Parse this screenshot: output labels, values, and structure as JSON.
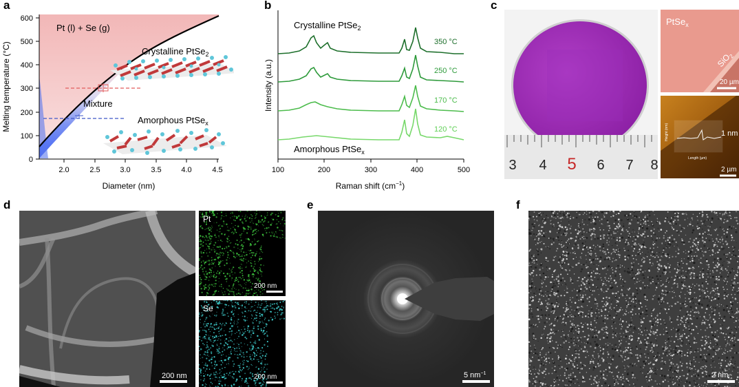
{
  "panels": {
    "a": {
      "label": "a",
      "region_top": "Pt (l) + Se (g)",
      "crystalline": "Crystalline PtSe",
      "crystalline_sub": "2",
      "mixture": "Mixture",
      "amorphous": "Amorphous PtSe",
      "amorphous_sub": "x",
      "ylabel": "Melting temperature (°C)",
      "xlabel": "Diameter (nm)",
      "xticks": [
        "2.0",
        "2.5",
        "3.0",
        "3.5",
        "4.0",
        "4.5"
      ],
      "yticks": [
        "0",
        "100",
        "200",
        "300",
        "400",
        "500",
        "600"
      ]
    },
    "b": {
      "label": "b",
      "ylabel": "Intensity (a.u.)",
      "xlabel": "Raman shift (cm",
      "xlabel_sup": "−1",
      "xlabel_end": ")",
      "xticks": [
        "100",
        "200",
        "300",
        "400",
        "500"
      ],
      "top_label": "Crystalline PtSe",
      "top_label_sub": "2",
      "bottom_label": "Amorphous PtSe",
      "bottom_label_sub": "x",
      "curves": [
        "350 °C",
        "250 °C",
        "170 °C",
        "120 °C"
      ]
    },
    "c": {
      "label": "c",
      "ruler_numbers": [
        "3",
        "4",
        "5",
        "6",
        "7",
        "8"
      ],
      "inset_title": "PtSe",
      "inset_title_sub": "x",
      "sio2": "SiO",
      "sio2_sub": "2",
      "scale_top": "20 µm",
      "afm_height": "1 nm",
      "afm_scale": "2 µm",
      "afm_ylabel": "Height (nm)",
      "afm_xlabel": "Length (µm)"
    },
    "d": {
      "label": "d",
      "scale_main": "200 nm",
      "pt": "Pt",
      "se": "Se",
      "scale_pt": "200 nm",
      "scale_se": "200 nm"
    },
    "e": {
      "label": "e",
      "scale": "5 nm",
      "scale_sup": "−1"
    },
    "f": {
      "label": "f",
      "scale": "2 nm"
    }
  },
  "chart_data": [
    {
      "type": "line",
      "panel": "a",
      "title": "",
      "xlabel": "Diameter (nm)",
      "ylabel": "Melting temperature (°C)",
      "xlim": [
        1.6,
        4.5
      ],
      "ylim": [
        0,
        620
      ],
      "series": [
        {
          "x": [
            1.6,
            1.8,
            2.0,
            2.2,
            2.4,
            2.6,
            2.8,
            3.0,
            3.2,
            3.4,
            3.6,
            3.8,
            4.0,
            4.2,
            4.5
          ],
          "values": [
            40,
            120,
            190,
            250,
            300,
            345,
            385,
            420,
            455,
            485,
            515,
            540,
            563,
            582,
            605
          ]
        }
      ],
      "points": [
        {
          "x": 2.65,
          "y": 305
        },
        {
          "x": 2.25,
          "y": 182
        }
      ]
    },
    {
      "type": "line",
      "panel": "b",
      "title": "",
      "xlabel": "Raman shift (cm−1)",
      "ylabel": "Intensity (a.u.)",
      "xlim": [
        100,
        500
      ],
      "xticks": [
        100,
        200,
        300,
        400,
        500
      ],
      "series": [
        {
          "name": "350 °C",
          "peaks": [
            178,
            205,
            380,
            403
          ]
        },
        {
          "name": "250 °C",
          "peaks": [
            178,
            205,
            380,
            403
          ]
        },
        {
          "name": "170 °C",
          "peaks": [
            178,
            380,
            403
          ]
        },
        {
          "name": "120 °C",
          "peaks": [
            380,
            403
          ]
        }
      ]
    }
  ],
  "colors": {
    "dark_green": "#1c6e2a",
    "mid_green": "#2d9a3a",
    "green": "#4cbc4c",
    "light_green": "#77d86a",
    "pink": "#f5c4c4",
    "blue": "#4a6df0",
    "red_dash": "#e25b5b",
    "blue_dash": "#3f58c8"
  }
}
